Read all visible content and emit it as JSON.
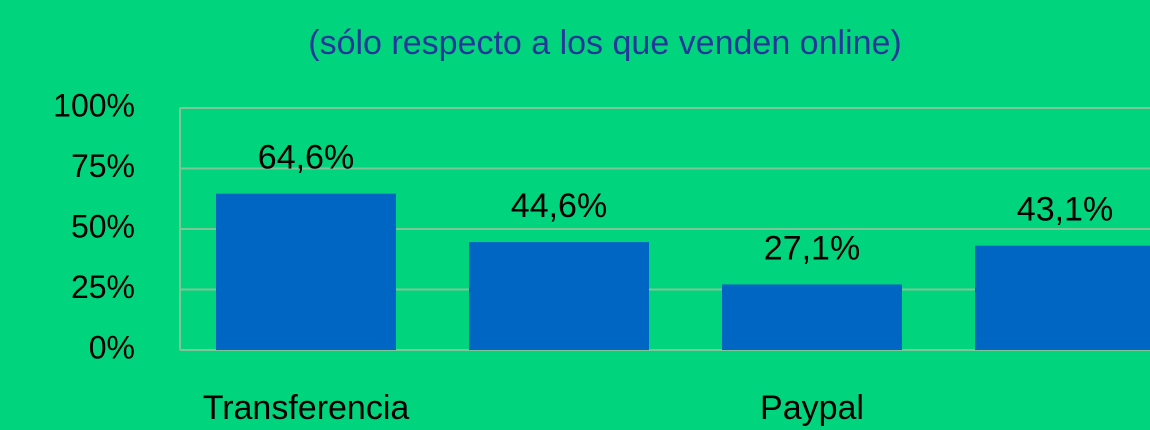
{
  "chart_data": {
    "type": "bar",
    "title": "(sólo respecto a los que venden online)",
    "categories": [
      "Transferencia",
      null,
      "Paypal",
      null
    ],
    "values": [
      64.6,
      44.6,
      27.1,
      43.1
    ],
    "value_labels": [
      "64,6%",
      "44,6%",
      "27,1%",
      "43,1%"
    ],
    "color": "#0066c4",
    "ylim": [
      0,
      100
    ],
    "yticks": [
      {
        "value": 0,
        "label": "0%"
      },
      {
        "value": 25,
        "label": "25%"
      },
      {
        "value": 50,
        "label": "50%"
      },
      {
        "value": 75,
        "label": "75%"
      },
      {
        "value": 100,
        "label": "100%"
      }
    ],
    "grid": true
  }
}
